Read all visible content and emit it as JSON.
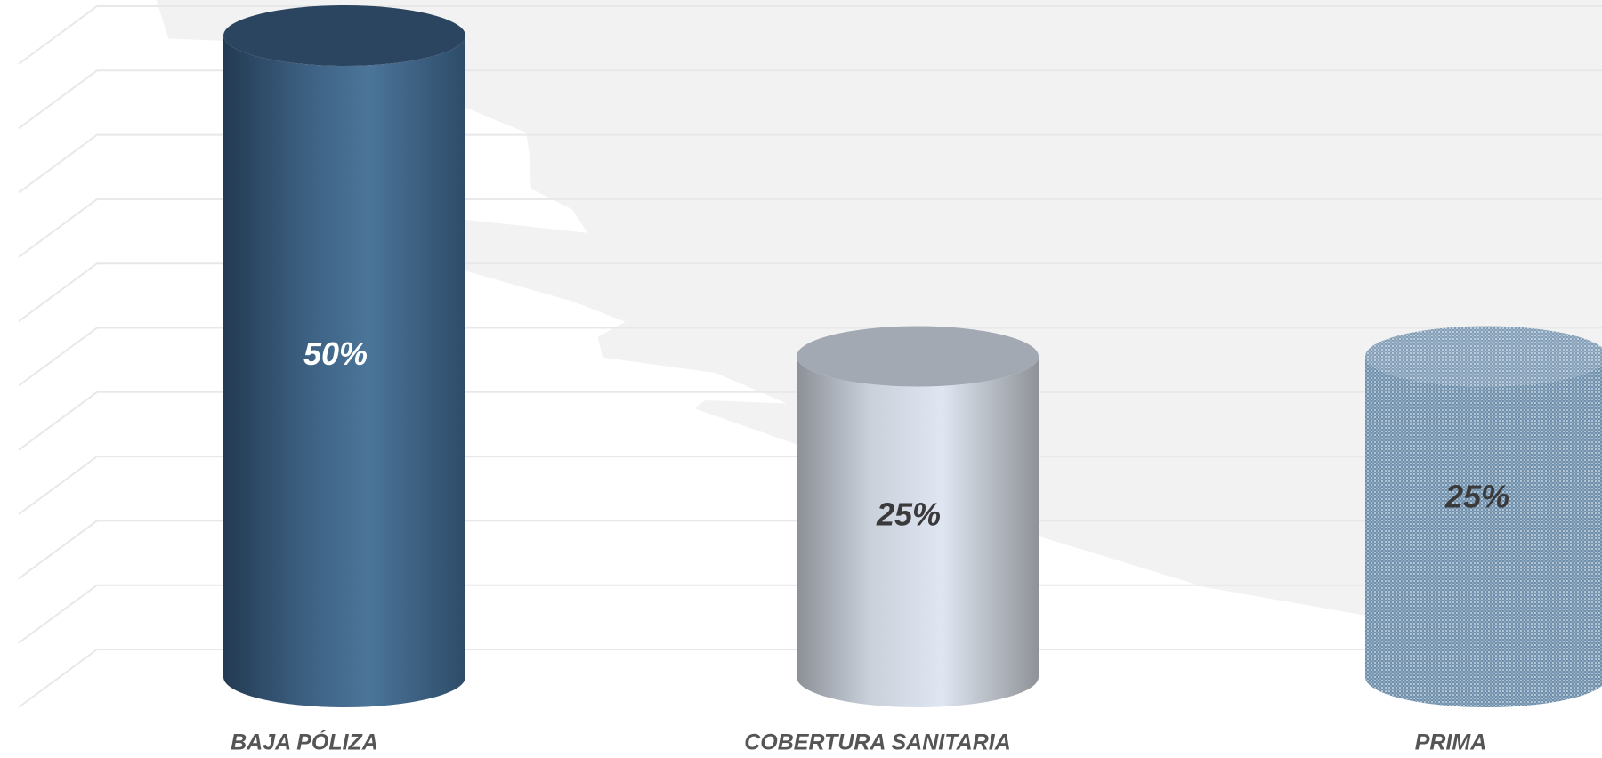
{
  "chart_data": {
    "type": "cylinder-bar",
    "categories": [
      "BAJA PÓLIZA",
      "COBERTURA SANITARIA",
      "PRIMA"
    ],
    "values": [
      50,
      25,
      25
    ],
    "value_labels": [
      "50%",
      "25%",
      "25%"
    ],
    "colors": [
      "#3f6689",
      "#c9d3e0",
      "#8aa6bf"
    ],
    "ylim": [
      0,
      50
    ],
    "yticks": [
      0,
      5,
      10,
      15,
      20,
      25,
      30,
      35,
      40,
      45,
      50
    ],
    "grid": true
  }
}
